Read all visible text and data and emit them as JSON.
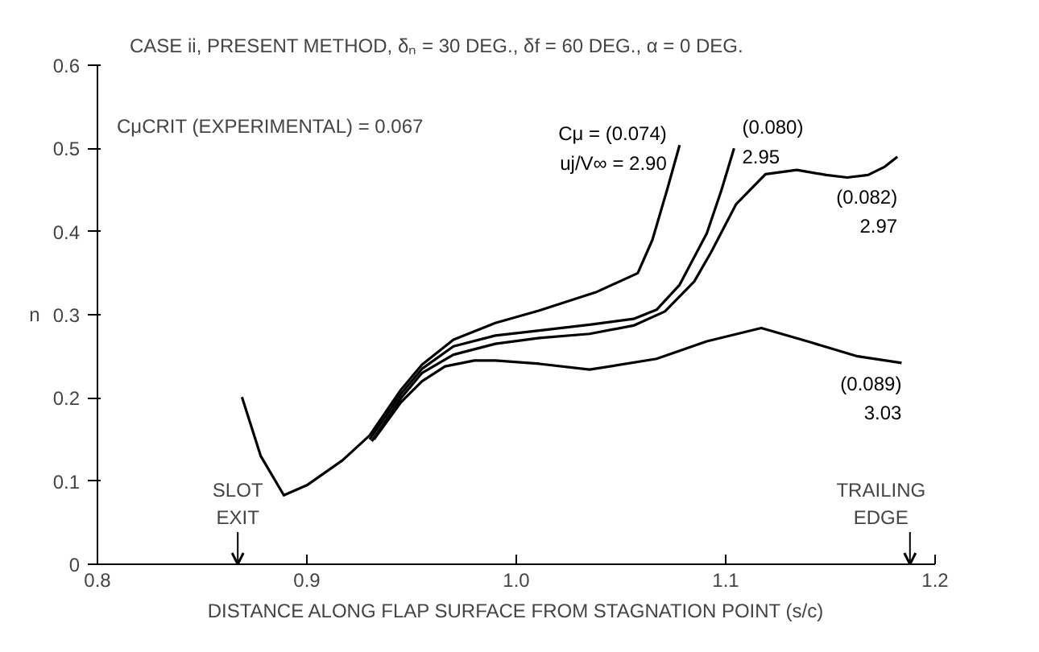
{
  "chart_data": {
    "type": "line",
    "title": "CASE ii, PRESENT METHOD, δₙ = 30 DEG., δf = 60 DEG., α = 0 DEG.",
    "xlabel": "DISTANCE ALONG FLAP SURFACE FROM STAGNATION POINT (s/c)",
    "ylabel": "n",
    "xlim": [
      0.8,
      1.2
    ],
    "ylim": [
      0,
      0.6
    ],
    "xticks": [
      0.8,
      0.9,
      {
        "value": 1.0,
        "label": "1.0"
      },
      1.1,
      1.2
    ],
    "yticks": [
      0,
      0.1,
      0.2,
      0.3,
      0.4,
      0.5,
      0.6
    ],
    "grid": false,
    "marker": "none",
    "line_style": "solid",
    "series": [
      {
        "name": "Cμ = (0.074)\nuj/V∞ = 2.90",
        "color": "#000000",
        "x": [
          0.869,
          0.878,
          0.889,
          0.9,
          0.917,
          0.93,
          0.945,
          0.955,
          0.97,
          0.99,
          1.011,
          1.038,
          1.058,
          1.065,
          1.072,
          1.078
        ],
        "values": [
          0.201,
          0.13,
          0.083,
          0.095,
          0.125,
          0.155,
          0.21,
          0.24,
          0.27,
          0.29,
          0.305,
          0.327,
          0.35,
          0.39,
          0.45,
          0.504
        ]
      },
      {
        "name": "(0.080)\n2.95",
        "color": "#000000",
        "x": [
          0.93,
          0.945,
          0.955,
          0.97,
          0.99,
          1.011,
          1.035,
          1.056,
          1.067,
          1.078,
          1.091,
          1.098,
          1.104
        ],
        "values": [
          0.15,
          0.205,
          0.235,
          0.262,
          0.275,
          0.281,
          0.288,
          0.295,
          0.306,
          0.336,
          0.398,
          0.45,
          0.5
        ]
      },
      {
        "name": "(0.082)\n2.97",
        "color": "#000000",
        "x": [
          0.931,
          0.945,
          0.955,
          0.97,
          0.99,
          1.011,
          1.035,
          1.056,
          1.071,
          1.085,
          1.093,
          1.105,
          1.119,
          1.134,
          1.148,
          1.158,
          1.168,
          1.176,
          1.182
        ],
        "values": [
          0.148,
          0.2,
          0.23,
          0.252,
          0.265,
          0.272,
          0.277,
          0.287,
          0.304,
          0.34,
          0.375,
          0.433,
          0.469,
          0.474,
          0.468,
          0.465,
          0.468,
          0.478,
          0.49
        ]
      },
      {
        "name": "(0.089)\n3.03",
        "color": "#000000",
        "x": [
          0.932,
          0.945,
          0.955,
          0.966,
          0.98,
          0.99,
          1.011,
          1.035,
          1.067,
          1.091,
          1.117,
          1.139,
          1.163,
          1.184
        ],
        "values": [
          0.15,
          0.195,
          0.22,
          0.238,
          0.245,
          0.245,
          0.241,
          0.234,
          0.247,
          0.268,
          0.284,
          0.268,
          0.25,
          0.242
        ]
      }
    ],
    "annotations": [
      "CμCRIT (EXPERIMENTAL) = 0.067",
      "SLOT\nEXIT",
      "TRAILING\nEDGE"
    ]
  }
}
